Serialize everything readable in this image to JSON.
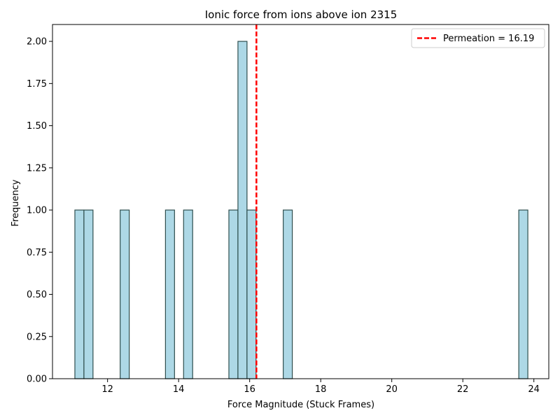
{
  "chart_data": {
    "type": "bar",
    "title": "Ionic force from ions above ion 2315",
    "xlabel": "Force Magnitude (Stuck Frames)",
    "ylabel": "Frequency",
    "xlim": [
      10.45,
      24.42
    ],
    "ylim": [
      0,
      2.1
    ],
    "bin_width": 0.255,
    "bins": [
      {
        "x0": 11.08,
        "count": 1
      },
      {
        "x0": 11.335,
        "count": 1
      },
      {
        "x0": 12.355,
        "count": 1
      },
      {
        "x0": 13.63,
        "count": 1
      },
      {
        "x0": 14.14,
        "count": 1
      },
      {
        "x0": 15.415,
        "count": 1
      },
      {
        "x0": 15.67,
        "count": 2
      },
      {
        "x0": 15.925,
        "count": 1
      },
      {
        "x0": 16.945,
        "count": 1
      },
      {
        "x0": 23.575,
        "count": 1
      }
    ],
    "x_ticks": [
      12,
      14,
      16,
      18,
      20,
      22,
      24
    ],
    "x_tick_labels": [
      "12",
      "14",
      "16",
      "18",
      "20",
      "22",
      "24"
    ],
    "y_ticks": [
      0,
      0.25,
      0.5,
      0.75,
      1.0,
      1.25,
      1.5,
      1.75,
      2.0
    ],
    "y_tick_labels": [
      "0.00",
      "0.25",
      "0.50",
      "0.75",
      "1.00",
      "1.25",
      "1.50",
      "1.75",
      "2.00"
    ],
    "bar_color": "#add8e6",
    "bar_edge_color": "#2f4f4f",
    "vline": {
      "x": 16.19,
      "label": "Permeation = 16.19",
      "color": "#ff0000",
      "style": "dashed"
    },
    "legend_position": "top-right",
    "grid": false
  }
}
